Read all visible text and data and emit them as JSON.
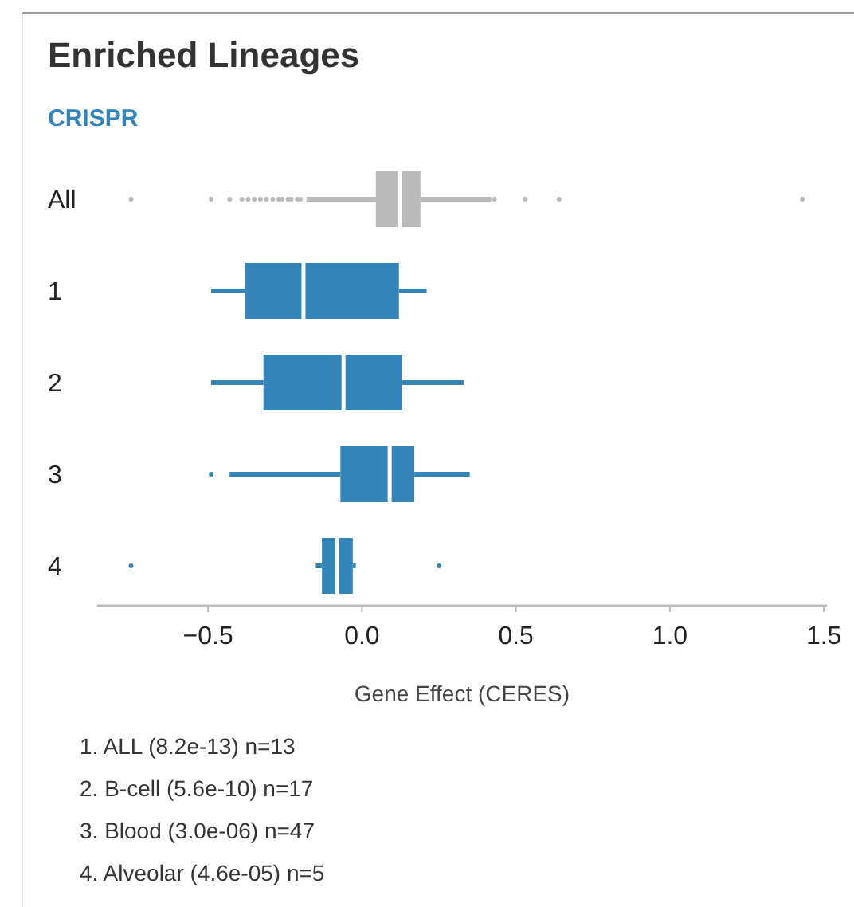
{
  "chart_data": {
    "type": "box",
    "title": "Enriched Lineages",
    "subtitle": "CRISPR",
    "orientation": "horizontal",
    "categories": [
      "All",
      "1",
      "2",
      "3",
      "4"
    ],
    "boxes": [
      {
        "low": -0.18,
        "q1": 0.045,
        "median": 0.124,
        "q3": 0.19,
        "high": 0.42,
        "outliers": [
          -0.75,
          -0.49,
          -0.43,
          -0.39,
          -0.37,
          -0.35,
          -0.33,
          -0.31,
          -0.29,
          -0.27,
          -0.26,
          -0.24,
          -0.23,
          -0.21,
          -0.2,
          0.43,
          0.53,
          0.64,
          1.43
        ]
      },
      {
        "low": -0.49,
        "q1": -0.38,
        "median": -0.19,
        "q3": 0.12,
        "high": 0.21
      },
      {
        "low": -0.49,
        "q1": -0.32,
        "median": -0.06,
        "q3": 0.13,
        "high": 0.33
      },
      {
        "low": -0.43,
        "q1": -0.07,
        "median": 0.09,
        "q3": 0.17,
        "high": 0.35,
        "outliers": [
          -0.49
        ]
      },
      {
        "low": -0.15,
        "q1": -0.13,
        "median": -0.08,
        "q3": -0.03,
        "high": -0.02,
        "outliers": [
          -0.75,
          0.25
        ]
      }
    ],
    "colors": [
      "#bbbbbb",
      "#3584b7",
      "#3584b7",
      "#3584b7",
      "#3584b7"
    ],
    "xlim": [
      -0.86,
      1.51
    ],
    "xticks": [
      {
        "value": -0.5,
        "label": "−0.5"
      },
      {
        "value": 0,
        "label": "0.0"
      },
      {
        "value": 0.5,
        "label": "0.5"
      },
      {
        "value": 1,
        "label": "1.0"
      },
      {
        "value": 1.5,
        "label": "1.5"
      }
    ],
    "xlabel": "Gene Effect (CERES)",
    "grid": false,
    "annotations": [
      "1. ALL (8.2e-13) n=13",
      "2. B-cell (5.6e-10) n=17",
      "3. Blood (3.0e-06) n=47",
      "4. Alveolar (4.6e-05) n=5"
    ]
  }
}
